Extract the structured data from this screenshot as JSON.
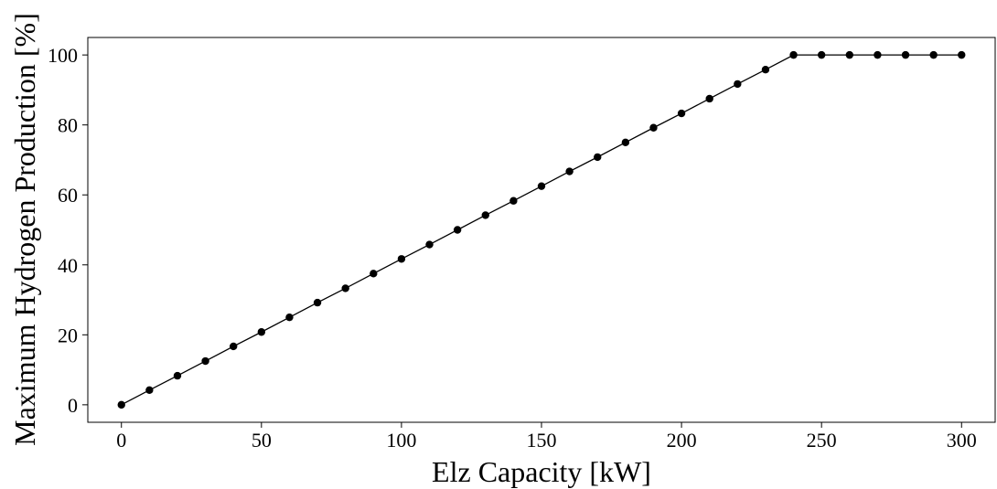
{
  "chart_data": {
    "type": "line",
    "title": "",
    "xlabel": "Elz Capacity [kW]",
    "ylabel": "Maximum Hydrogen Production [%]",
    "xlim": [
      -12,
      312
    ],
    "ylim": [
      -5,
      105
    ],
    "xticks": [
      0,
      50,
      100,
      150,
      200,
      250,
      300
    ],
    "yticks": [
      0,
      20,
      40,
      60,
      80,
      100
    ],
    "grid": false,
    "legend": "none",
    "series": [
      {
        "name": "",
        "color": "#000000",
        "marker": "circle",
        "x": [
          0,
          10,
          20,
          30,
          40,
          50,
          60,
          70,
          80,
          90,
          100,
          110,
          120,
          130,
          140,
          150,
          160,
          170,
          180,
          190,
          200,
          210,
          220,
          230,
          240,
          250,
          260,
          270,
          280,
          290,
          300
        ],
        "y": [
          0,
          4.2,
          8.3,
          12.5,
          16.7,
          20.8,
          25.0,
          29.2,
          33.3,
          37.5,
          41.7,
          45.8,
          50.0,
          54.2,
          58.3,
          62.5,
          66.7,
          70.8,
          75.0,
          79.2,
          83.3,
          87.5,
          91.7,
          95.8,
          100,
          100,
          100,
          100,
          100,
          100,
          100
        ]
      }
    ]
  }
}
